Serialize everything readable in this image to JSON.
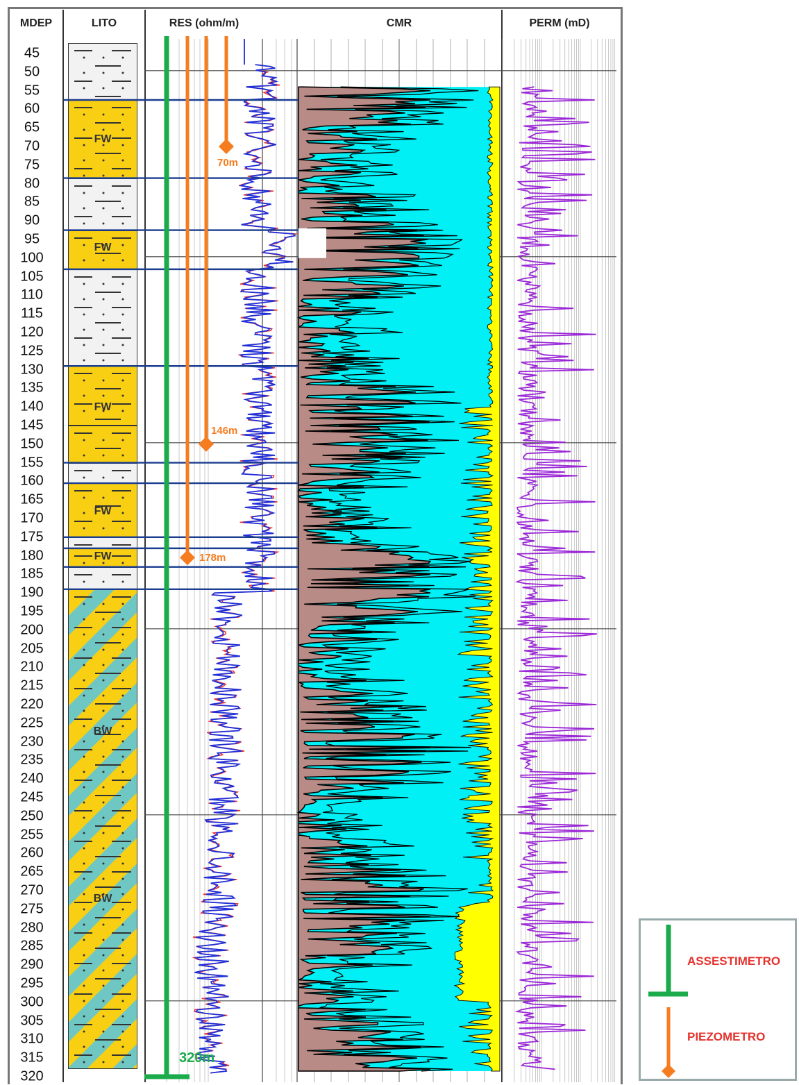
{
  "headers": {
    "depth": "MDEP",
    "litho": "LITO",
    "res": "RES (ohm/m)",
    "cmr": "CMR",
    "perm": "PERM (mD)"
  },
  "depth_ticks": [
    "45",
    "50",
    "55",
    "60",
    "65",
    "70",
    "75",
    "80",
    "85",
    "90",
    "95",
    "100",
    "105",
    "110",
    "115",
    "120",
    "125",
    "130",
    "135",
    "140",
    "145",
    "150",
    "155",
    "160",
    "165",
    "170",
    "175",
    "180",
    "185",
    "190",
    "195",
    "200",
    "205",
    "210",
    "215",
    "220",
    "225",
    "230",
    "235",
    "240",
    "245",
    "250",
    "255",
    "260",
    "265",
    "270",
    "275",
    "280",
    "285",
    "290",
    "295",
    "300",
    "305",
    "310",
    "315",
    "320"
  ],
  "litho_labels": [
    "FW",
    "FW",
    "FW",
    "FW",
    "FW",
    "BW",
    "BW"
  ],
  "instruments": {
    "assestimetro_depth_label": "320m",
    "piezometer_labels": [
      "70m",
      "146m",
      "178m"
    ]
  },
  "legend": {
    "assestimetro": "ASSESTIMETRO",
    "piezometro": "PIEZOMETRO"
  },
  "colors": {
    "sand_fill": "#f9cf14",
    "clay_fill": "#f2f2f2",
    "stripe_teal": "#6fc7c4",
    "cmr_cyan": "#00f0f5",
    "cmr_brown": "#b88b86",
    "cmr_yellow": "#ffff00",
    "res_red": "#e83030",
    "res_blue": "#1f2fd8",
    "perm_purple": "#9b28d6",
    "boundary_blue": "#1a3d8f",
    "assestimetro_green": "#1bab4b",
    "piezometro_orange": "#f57c1f"
  }
}
